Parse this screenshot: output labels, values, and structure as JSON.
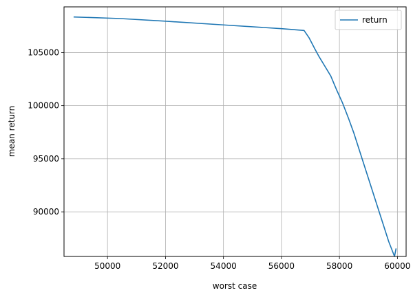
{
  "chart_data": {
    "type": "line",
    "title": "",
    "xlabel": "worst case",
    "ylabel": "mean return",
    "xlim": [
      48500,
      60300
    ],
    "ylim": [
      85800,
      109300
    ],
    "xticks": [
      50000,
      52000,
      54000,
      56000,
      58000,
      60000
    ],
    "yticks": [
      90000,
      95000,
      100000,
      105000
    ],
    "grid": true,
    "legend": {
      "position": "top-right"
    },
    "series": [
      {
        "name": "return",
        "color": "#1f77b4",
        "x": [
          48850,
          50450,
          52000,
          54000,
          56000,
          56780,
          56950,
          57150,
          57300,
          57500,
          57700,
          57900,
          58100,
          58300,
          58500,
          58700,
          58900,
          59100,
          59300,
          59500,
          59700,
          59900,
          59950
        ],
        "y": [
          108350,
          108200,
          107950,
          107600,
          107250,
          107080,
          106400,
          105350,
          104600,
          103700,
          102800,
          101500,
          100300,
          98900,
          97400,
          95700,
          94000,
          92300,
          90600,
          88900,
          87200,
          85800,
          86500
        ]
      }
    ]
  }
}
